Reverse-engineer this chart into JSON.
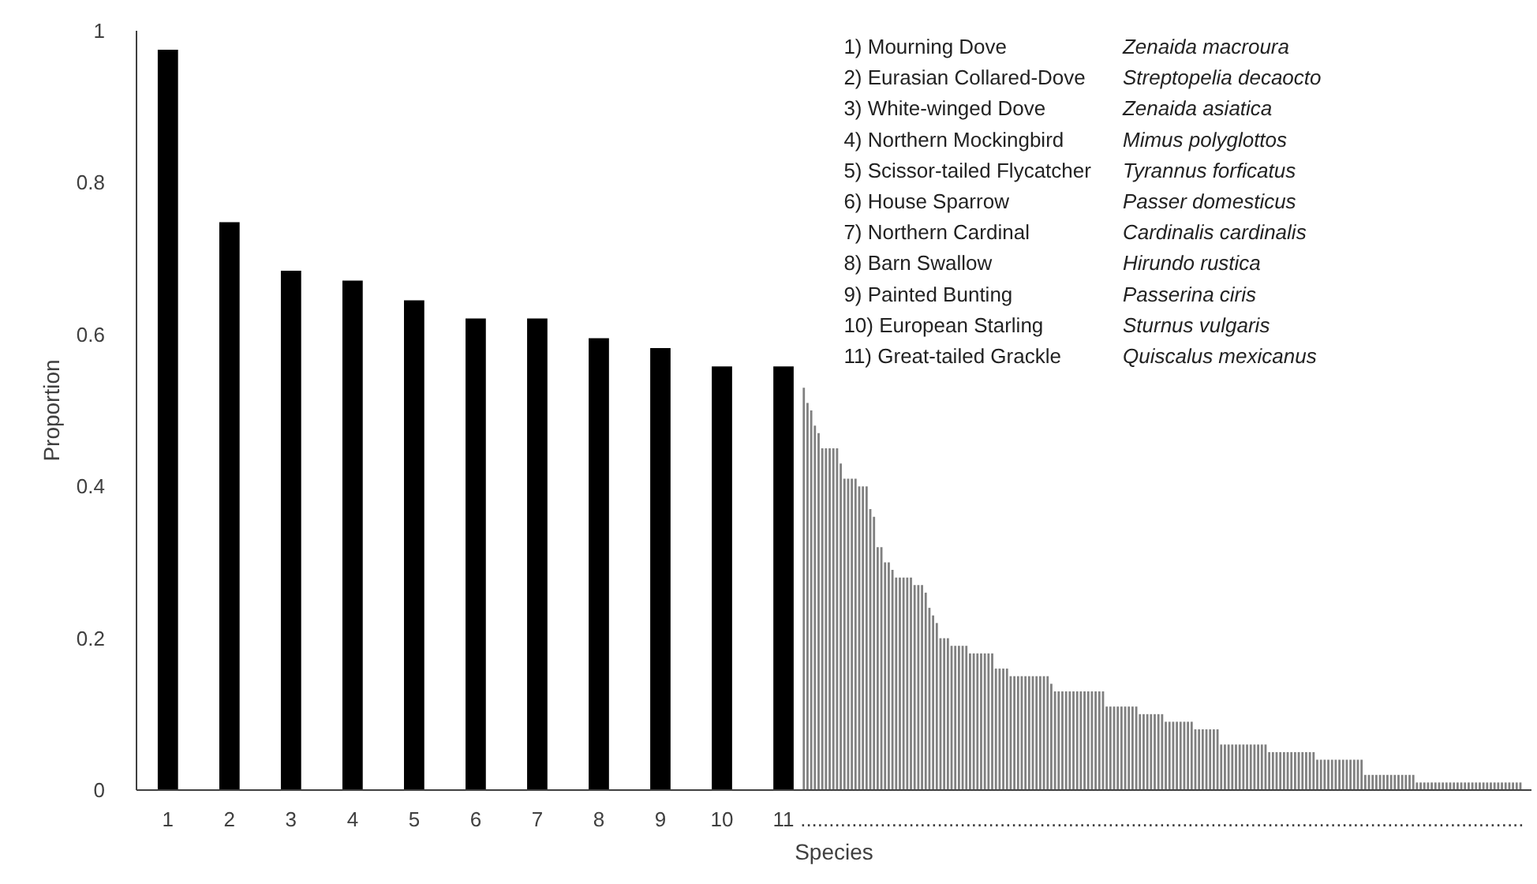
{
  "chart_data": {
    "type": "bar",
    "xlabel": "Species",
    "ylabel": "Proportion",
    "xlim": [
      0.49,
      23.15
    ],
    "ylim": [
      0,
      1
    ],
    "yticks": [
      0,
      0.2,
      0.4,
      0.6,
      0.8,
      1
    ],
    "xticks": [
      1,
      2,
      3,
      4,
      5,
      6,
      7,
      8,
      9,
      10,
      11,
      {
        "value": 17.15,
        "label": "..............................................................................................................................."
      }
    ],
    "grid": false,
    "series": [
      {
        "color": "#000000",
        "x": [
          1,
          2,
          3,
          4,
          5,
          6,
          7,
          8,
          9,
          10,
          11
        ],
        "values": [
          0.975,
          0.748,
          0.684,
          0.671,
          0.645,
          0.621,
          0.621,
          0.595,
          0.582,
          0.558,
          0.558
        ]
      },
      {
        "color": "#808080",
        "x": [
          11.33,
          11.39,
          11.45,
          11.51,
          11.57,
          11.63,
          11.69,
          11.75,
          11.81,
          11.87,
          11.93,
          11.99,
          12.05,
          12.11,
          12.17,
          12.23,
          12.29,
          12.35,
          12.41,
          12.47,
          12.53,
          12.59,
          12.65,
          12.71,
          12.77,
          12.83,
          12.89,
          12.95,
          13.01,
          13.07,
          13.13,
          13.19,
          13.25,
          13.31,
          13.37,
          13.43,
          13.49,
          13.55,
          13.61,
          13.67,
          13.73,
          13.79,
          13.85,
          13.91,
          13.97,
          14.03,
          14.09,
          14.15,
          14.21,
          14.27,
          14.33,
          14.39,
          14.45,
          14.51,
          14.57,
          14.63,
          14.69,
          14.75,
          14.81,
          14.87,
          14.93,
          14.99,
          15.05,
          15.11,
          15.17,
          15.23,
          15.29,
          15.35,
          15.41,
          15.47,
          15.53,
          15.59,
          15.65,
          15.71,
          15.77,
          15.83,
          15.89,
          15.95,
          16.01,
          16.07,
          16.13,
          16.19,
          16.25,
          16.31,
          16.37,
          16.43,
          16.49,
          16.55,
          16.61,
          16.67,
          16.73,
          16.79,
          16.85,
          16.91,
          16.97,
          17.03,
          17.09,
          17.15,
          17.21,
          17.27,
          17.33,
          17.39,
          17.45,
          17.51,
          17.57,
          17.63,
          17.69,
          17.75,
          17.81,
          17.87,
          17.93,
          17.99,
          18.05,
          18.11,
          18.17,
          18.23,
          18.29,
          18.35,
          18.41,
          18.47,
          18.53,
          18.59,
          18.65,
          18.71,
          18.77,
          18.83,
          18.89,
          18.95,
          19.01,
          19.07,
          19.13,
          19.19,
          19.25,
          19.31,
          19.37,
          19.43,
          19.49,
          19.55,
          19.61,
          19.67,
          19.73,
          19.79,
          19.85,
          19.91,
          19.97,
          20.03,
          20.09,
          20.15,
          20.21,
          20.27,
          20.33,
          20.39,
          20.45,
          20.51,
          20.57,
          20.63,
          20.69,
          20.75,
          20.81,
          20.87,
          20.93,
          20.99,
          21.05,
          21.11,
          21.17,
          21.23,
          21.29,
          21.35,
          21.41,
          21.47,
          21.53,
          21.59,
          21.65,
          21.71,
          21.77,
          21.83,
          21.89,
          21.95,
          22.01,
          22.07,
          22.13,
          22.19,
          22.25,
          22.31,
          22.37,
          22.43,
          22.49,
          22.55,
          22.61,
          22.67,
          22.73,
          22.79,
          22.85,
          22.91,
          22.97
        ],
        "values": [
          0.53,
          0.51,
          0.5,
          0.48,
          0.47,
          0.45,
          0.45,
          0.45,
          0.45,
          0.45,
          0.43,
          0.41,
          0.41,
          0.41,
          0.41,
          0.4,
          0.4,
          0.4,
          0.37,
          0.36,
          0.32,
          0.32,
          0.3,
          0.3,
          0.29,
          0.28,
          0.28,
          0.28,
          0.28,
          0.28,
          0.27,
          0.27,
          0.27,
          0.26,
          0.24,
          0.23,
          0.22,
          0.2,
          0.2,
          0.2,
          0.19,
          0.19,
          0.19,
          0.19,
          0.19,
          0.18,
          0.18,
          0.18,
          0.18,
          0.18,
          0.18,
          0.18,
          0.16,
          0.16,
          0.16,
          0.16,
          0.15,
          0.15,
          0.15,
          0.15,
          0.15,
          0.15,
          0.15,
          0.15,
          0.15,
          0.15,
          0.15,
          0.14,
          0.13,
          0.13,
          0.13,
          0.13,
          0.13,
          0.13,
          0.13,
          0.13,
          0.13,
          0.13,
          0.13,
          0.13,
          0.13,
          0.13,
          0.11,
          0.11,
          0.11,
          0.11,
          0.11,
          0.11,
          0.11,
          0.11,
          0.11,
          0.1,
          0.1,
          0.1,
          0.1,
          0.1,
          0.1,
          0.1,
          0.09,
          0.09,
          0.09,
          0.09,
          0.09,
          0.09,
          0.09,
          0.09,
          0.08,
          0.08,
          0.08,
          0.08,
          0.08,
          0.08,
          0.08,
          0.06,
          0.06,
          0.06,
          0.06,
          0.06,
          0.06,
          0.06,
          0.06,
          0.06,
          0.06,
          0.06,
          0.06,
          0.06,
          0.05,
          0.05,
          0.05,
          0.05,
          0.05,
          0.05,
          0.05,
          0.05,
          0.05,
          0.05,
          0.05,
          0.05,
          0.05,
          0.04,
          0.04,
          0.04,
          0.04,
          0.04,
          0.04,
          0.04,
          0.04,
          0.04,
          0.04,
          0.04,
          0.04,
          0.04,
          0.02,
          0.02,
          0.02,
          0.02,
          0.02,
          0.02,
          0.02,
          0.02,
          0.02,
          0.02,
          0.02,
          0.02,
          0.02,
          0.02,
          0.01,
          0.01,
          0.01,
          0.01,
          0.01,
          0.01,
          0.01,
          0.01,
          0.01,
          0.01,
          0.01,
          0.01,
          0.01,
          0.01,
          0.01,
          0.01,
          0.01,
          0.01,
          0.01,
          0.01,
          0.01,
          0.01,
          0.01,
          0.01,
          0.01,
          0.01,
          0.01,
          0.01,
          0.01
        ]
      }
    ],
    "annotations": [
      "1)  Mourning Dove",
      "Zenaida macroura",
      "2)  Eurasian Collared-Dove",
      "Streptopelia decaocto",
      "3)  White-winged Dove",
      "Zenaida asiatica",
      "4)  Northern Mockingbird",
      "Mimus polyglottos",
      "5)  Scissor-tailed Flycatcher",
      "Tyrannus forficatus",
      "6)  House Sparrow",
      "Passer domesticus",
      "7)  Northern Cardinal",
      "Cardinalis cardinalis",
      "8)  Barn Swallow",
      "Hirundo rustica",
      "9)  Painted Bunting",
      "Passerina ciris",
      "10)  European Starling",
      "Sturnus vulgaris",
      "11)  Great-tailed Grackle",
      "Quiscalus mexicanus"
    ]
  }
}
